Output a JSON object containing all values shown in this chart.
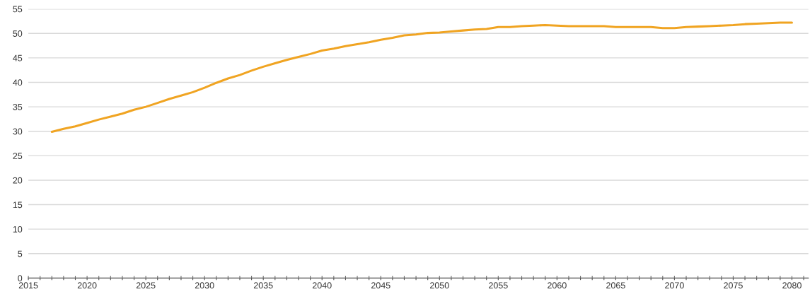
{
  "chart_data": {
    "type": "line",
    "x": [
      2017,
      2018,
      2019,
      2020,
      2021,
      2022,
      2023,
      2024,
      2025,
      2026,
      2027,
      2028,
      2029,
      2030,
      2031,
      2032,
      2033,
      2034,
      2035,
      2036,
      2037,
      2038,
      2039,
      2040,
      2041,
      2042,
      2043,
      2044,
      2045,
      2046,
      2047,
      2048,
      2049,
      2050,
      2051,
      2052,
      2053,
      2054,
      2055,
      2056,
      2057,
      2058,
      2059,
      2060,
      2061,
      2062,
      2063,
      2064,
      2065,
      2066,
      2067,
      2068,
      2069,
      2070,
      2071,
      2072,
      2073,
      2074,
      2075,
      2076,
      2077,
      2078,
      2079,
      2080
    ],
    "series": [
      {
        "color": "#f0a422",
        "values": [
          29.9,
          30.5,
          31.0,
          31.7,
          32.4,
          33.0,
          33.6,
          34.4,
          35.0,
          35.8,
          36.6,
          37.3,
          38.0,
          38.9,
          39.9,
          40.8,
          41.5,
          42.4,
          43.2,
          43.9,
          44.6,
          45.2,
          45.8,
          46.5,
          46.9,
          47.4,
          47.8,
          48.2,
          48.7,
          49.1,
          49.6,
          49.8,
          50.1,
          50.2,
          50.4,
          50.6,
          50.8,
          50.9,
          51.3,
          51.3,
          51.5,
          51.6,
          51.7,
          51.6,
          51.5,
          51.5,
          51.5,
          51.5,
          51.3,
          51.3,
          51.3,
          51.3,
          51.1,
          51.1,
          51.3,
          51.4,
          51.5,
          51.6,
          51.7,
          51.9,
          52.0,
          52.1,
          52.2,
          52.2
        ]
      }
    ],
    "xlim": [
      2015,
      2081.4
    ],
    "xticks": [
      2015,
      {
        "value": 2016,
        "label": null
      },
      {
        "value": 2017,
        "label": null
      },
      {
        "value": 2018,
        "label": null
      },
      {
        "value": 2019,
        "label": null
      },
      2020,
      {
        "value": 2021,
        "label": null
      },
      {
        "value": 2022,
        "label": null
      },
      {
        "value": 2023,
        "label": null
      },
      {
        "value": 2024,
        "label": null
      },
      2025,
      {
        "value": 2026,
        "label": null
      },
      {
        "value": 2027,
        "label": null
      },
      {
        "value": 2028,
        "label": null
      },
      {
        "value": 2029,
        "label": null
      },
      2030,
      {
        "value": 2031,
        "label": null
      },
      {
        "value": 2032,
        "label": null
      },
      {
        "value": 2033,
        "label": null
      },
      {
        "value": 2034,
        "label": null
      },
      2035,
      {
        "value": 2036,
        "label": null
      },
      {
        "value": 2037,
        "label": null
      },
      {
        "value": 2038,
        "label": null
      },
      {
        "value": 2039,
        "label": null
      },
      2040,
      {
        "value": 2041,
        "label": null
      },
      {
        "value": 2042,
        "label": null
      },
      {
        "value": 2043,
        "label": null
      },
      {
        "value": 2044,
        "label": null
      },
      2045,
      {
        "value": 2046,
        "label": null
      },
      {
        "value": 2047,
        "label": null
      },
      {
        "value": 2048,
        "label": null
      },
      {
        "value": 2049,
        "label": null
      },
      2050,
      {
        "value": 2051,
        "label": null
      },
      {
        "value": 2052,
        "label": null
      },
      {
        "value": 2053,
        "label": null
      },
      {
        "value": 2054,
        "label": null
      },
      2055,
      {
        "value": 2056,
        "label": null
      },
      {
        "value": 2057,
        "label": null
      },
      {
        "value": 2058,
        "label": null
      },
      {
        "value": 2059,
        "label": null
      },
      2060,
      {
        "value": 2061,
        "label": null
      },
      {
        "value": 2062,
        "label": null
      },
      {
        "value": 2063,
        "label": null
      },
      {
        "value": 2064,
        "label": null
      },
      2065,
      {
        "value": 2066,
        "label": null
      },
      {
        "value": 2067,
        "label": null
      },
      {
        "value": 2068,
        "label": null
      },
      {
        "value": 2069,
        "label": null
      },
      2070,
      {
        "value": 2071,
        "label": null
      },
      {
        "value": 2072,
        "label": null
      },
      {
        "value": 2073,
        "label": null
      },
      {
        "value": 2074,
        "label": null
      },
      2075,
      {
        "value": 2076,
        "label": null
      },
      {
        "value": 2077,
        "label": null
      },
      {
        "value": 2078,
        "label": null
      },
      {
        "value": 2079,
        "label": null
      },
      2080,
      {
        "value": 2081,
        "label": null
      }
    ],
    "ylim": [
      0,
      55
    ],
    "yticks": [
      0,
      5,
      10,
      15,
      20,
      25,
      30,
      35,
      40,
      45,
      50,
      55
    ],
    "grid": "y"
  }
}
